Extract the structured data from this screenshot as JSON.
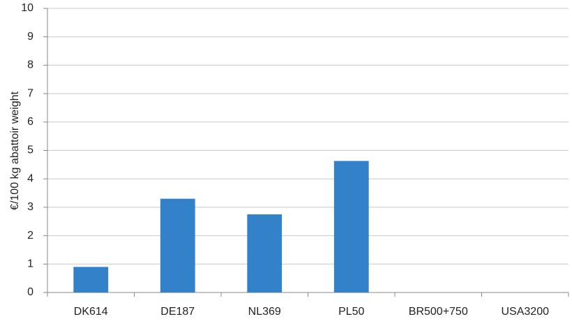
{
  "chart_data": {
    "type": "bar",
    "y_label": "€/100 kg abattoir weight",
    "categories": [
      "DK614",
      "DE187",
      "NL369",
      "PL50",
      "BR500+750",
      "USA3200"
    ],
    "values": [
      0.9,
      3.3,
      2.75,
      4.63,
      0,
      0
    ],
    "color": "#3381c9",
    "ylim": [
      0,
      10
    ],
    "yticks": [
      0,
      1,
      2,
      3,
      4,
      5,
      6,
      7,
      8,
      9,
      10
    ],
    "grid": true
  }
}
